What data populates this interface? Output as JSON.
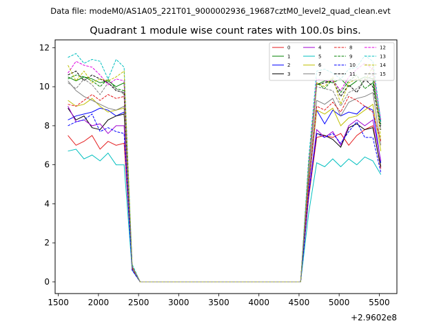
{
  "figure": {
    "suptitle": "Data file: modeM0/AS1A05_221T01_9000002936_19687cztM0_level2_quad_clean.evt"
  },
  "chart_data": {
    "type": "line",
    "title": "Quadrant 1 module wise count rates with 100.0s bins.",
    "xlabel": "",
    "ylabel": "",
    "offset_text": "+2.9602e8",
    "xlim": [
      1460,
      5720
    ],
    "ylim": [
      -0.6,
      12.4
    ],
    "xticks": [
      1500,
      2000,
      2500,
      3000,
      3500,
      4000,
      4500,
      5000,
      5500
    ],
    "yticks": [
      0,
      2,
      4,
      6,
      8,
      10,
      12
    ],
    "grid": false,
    "legend": {
      "position": "top-right",
      "columns": 4
    },
    "segment1_x": [
      1620,
      1720,
      1820,
      1920,
      2020,
      2120,
      2220,
      2320,
      2420,
      2520
    ],
    "gap_x": [
      2620,
      2720,
      2820,
      2920,
      3020,
      3120,
      3220,
      3320,
      3420,
      3520,
      3620,
      3720,
      3820,
      3920,
      4020,
      4120,
      4220,
      4320,
      4420
    ],
    "segment2_x": [
      4520,
      4620,
      4720,
      4820,
      4920,
      5020,
      5120,
      5220,
      5320,
      5420,
      5520
    ],
    "series": [
      {
        "name": "0",
        "color": "#e41a1c",
        "dash": false,
        "seg1": [
          7.5,
          7.0,
          7.2,
          7.5,
          6.8,
          7.2,
          7.0,
          7.1,
          0.8,
          0.0
        ],
        "seg2": [
          0.0,
          4.3,
          7.4,
          7.5,
          7.4,
          7.6,
          7.0,
          7.5,
          7.8,
          8.0,
          5.8
        ]
      },
      {
        "name": "1",
        "color": "#008000",
        "dash": false,
        "seg1": [
          10.5,
          10.3,
          10.5,
          10.4,
          10.2,
          10.3,
          10.0,
          10.2,
          0.8,
          0.0
        ],
        "seg2": [
          0.0,
          5.8,
          10.1,
          10.3,
          10.2,
          10.4,
          10.0,
          10.3,
          10.5,
          10.4,
          8.0
        ]
      },
      {
        "name": "2",
        "color": "#0000ff",
        "dash": false,
        "seg1": [
          8.3,
          8.5,
          8.6,
          8.7,
          8.9,
          8.8,
          8.5,
          8.7,
          0.7,
          0.0
        ],
        "seg2": [
          0.0,
          4.8,
          8.8,
          8.1,
          8.8,
          8.5,
          8.7,
          8.6,
          9.0,
          8.8,
          6.1
        ]
      },
      {
        "name": "3",
        "color": "#000000",
        "dash": false,
        "seg1": [
          8.9,
          8.3,
          8.5,
          7.9,
          7.8,
          8.3,
          8.5,
          8.6,
          0.7,
          0.0
        ],
        "seg2": [
          0.0,
          4.5,
          7.6,
          7.5,
          7.3,
          6.9,
          7.9,
          8.1,
          7.8,
          7.9,
          5.9
        ]
      },
      {
        "name": "4",
        "color": "#a000d0",
        "dash": false,
        "seg1": [
          9.0,
          8.2,
          8.3,
          8.0,
          8.1,
          7.6,
          8.0,
          8.0,
          0.6,
          0.0
        ],
        "seg2": [
          0.0,
          4.5,
          7.8,
          7.4,
          7.7,
          7.0,
          8.0,
          8.3,
          8.0,
          8.3,
          6.2
        ]
      },
      {
        "name": "5",
        "color": "#00bfbf",
        "dash": false,
        "seg1": [
          6.7,
          6.8,
          6.3,
          6.5,
          6.2,
          6.6,
          6.0,
          6.0,
          0.6,
          0.0
        ],
        "seg2": [
          0.0,
          3.5,
          6.1,
          5.9,
          6.3,
          5.9,
          6.3,
          6.0,
          6.4,
          6.2,
          5.5
        ]
      },
      {
        "name": "6",
        "color": "#bfbf00",
        "dash": false,
        "seg1": [
          9.3,
          9.0,
          9.1,
          9.4,
          9.0,
          8.7,
          8.8,
          8.9,
          0.7,
          0.0
        ],
        "seg2": [
          0.0,
          5.0,
          8.8,
          8.6,
          8.9,
          8.0,
          8.4,
          8.5,
          8.8,
          9.1,
          6.7
        ]
      },
      {
        "name": "7",
        "color": "#808080",
        "dash": false,
        "seg1": [
          10.3,
          9.8,
          9.5,
          9.3,
          9.1,
          8.9,
          8.8,
          9.0,
          0.7,
          0.0
        ],
        "seg2": [
          0.0,
          5.3,
          9.3,
          9.1,
          9.4,
          8.5,
          9.2,
          9.4,
          9.5,
          9.7,
          7.0
        ]
      },
      {
        "name": "8",
        "color": "#e41a1c",
        "dash": true,
        "seg1": [
          9.1,
          9.0,
          9.3,
          9.6,
          9.3,
          9.6,
          9.4,
          9.5,
          0.7,
          0.0
        ],
        "seg2": [
          0.0,
          5.0,
          9.0,
          8.8,
          9.2,
          8.7,
          9.5,
          9.3,
          9.0,
          8.7,
          7.2
        ]
      },
      {
        "name": "9",
        "color": "#008000",
        "dash": true,
        "seg1": [
          10.4,
          10.6,
          10.5,
          10.3,
          10.0,
          10.4,
          9.9,
          9.8,
          0.8,
          0.0
        ],
        "seg2": [
          0.0,
          5.8,
          10.2,
          9.9,
          10.4,
          9.7,
          10.3,
          10.6,
          9.9,
          10.2,
          8.1
        ]
      },
      {
        "name": "10",
        "color": "#0000ff",
        "dash": true,
        "seg1": [
          8.0,
          8.2,
          8.3,
          8.6,
          7.7,
          7.9,
          7.7,
          7.6,
          0.6,
          0.0
        ],
        "seg2": [
          0.0,
          4.4,
          7.6,
          7.4,
          7.6,
          7.1,
          7.7,
          8.2,
          7.4,
          7.4,
          5.6
        ]
      },
      {
        "name": "11",
        "color": "#000000",
        "dash": true,
        "seg1": [
          10.6,
          10.8,
          10.3,
          10.6,
          10.4,
          10.2,
          9.8,
          9.7,
          0.8,
          0.0
        ],
        "seg2": [
          0.0,
          5.8,
          10.1,
          10.2,
          10.3,
          9.5,
          10.1,
          9.7,
          10.4,
          10.0,
          7.8
        ]
      },
      {
        "name": "12",
        "color": "#e000e0",
        "dash": true,
        "seg1": [
          10.7,
          11.3,
          11.1,
          11.0,
          10.6,
          10.1,
          10.4,
          10.3,
          0.8,
          0.0
        ],
        "seg2": [
          0.0,
          6.0,
          10.4,
          10.3,
          10.3,
          9.8,
          10.5,
          10.9,
          11.2,
          10.9,
          8.3
        ]
      },
      {
        "name": "13",
        "color": "#00bfbf",
        "dash": true,
        "seg1": [
          11.5,
          11.7,
          11.2,
          11.4,
          11.3,
          10.4,
          11.4,
          11.0,
          0.9,
          0.0
        ],
        "seg2": [
          0.0,
          6.3,
          10.8,
          10.9,
          10.7,
          10.4,
          10.9,
          11.0,
          11.6,
          11.3,
          8.2
        ]
      },
      {
        "name": "14",
        "color": "#bfbf00",
        "dash": true,
        "seg1": [
          11.1,
          10.3,
          10.8,
          10.2,
          10.4,
          10.3,
          10.5,
          10.8,
          0.8,
          0.0
        ],
        "seg2": [
          0.0,
          5.9,
          10.2,
          10.0,
          10.5,
          9.1,
          10.2,
          10.4,
          10.3,
          11.0,
          7.3
        ]
      },
      {
        "name": "15",
        "color": "#808080",
        "dash": true,
        "seg1": [
          10.2,
          9.9,
          10.4,
          10.1,
          9.6,
          10.2,
          9.9,
          9.6,
          0.8,
          0.0
        ],
        "seg2": [
          0.0,
          5.7,
          10.0,
          9.9,
          9.8,
          9.0,
          9.7,
          9.9,
          10.3,
          10.6,
          8.0
        ]
      }
    ]
  }
}
